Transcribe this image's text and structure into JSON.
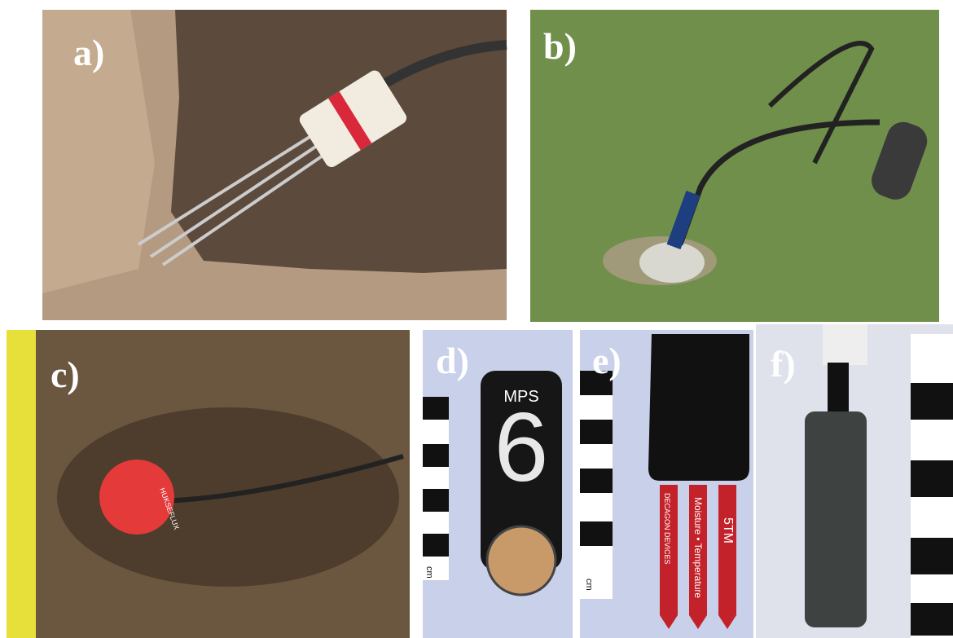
{
  "panels": [
    {
      "label": "a)"
    },
    {
      "label": "b)"
    },
    {
      "label": "c)",
      "texts": [
        "HUKSEFLUX"
      ]
    },
    {
      "label": "d)",
      "texts": [
        "MPS",
        "6",
        "cm"
      ]
    },
    {
      "label": "e)",
      "texts": [
        "DECAGON DEVICES",
        "Moisture • Temperature",
        "5TM",
        "cm"
      ]
    },
    {
      "label": "f)"
    }
  ]
}
